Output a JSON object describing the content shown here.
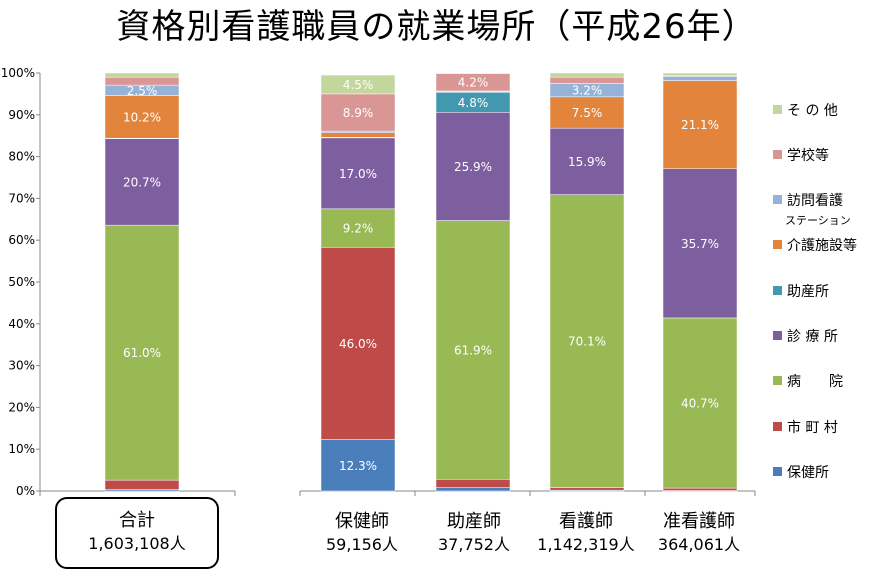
{
  "title": "資格別看護職員の就業場所（平成26年）",
  "chart_data": {
    "type": "bar",
    "stacked": true,
    "percent": true,
    "ylim": [
      0,
      100
    ],
    "yticks": [
      "0%",
      "10%",
      "20%",
      "30%",
      "40%",
      "50%",
      "60%",
      "70%",
      "80%",
      "90%",
      "100%"
    ],
    "grid": false,
    "legend_position": "right",
    "categories": [
      {
        "name": "合計",
        "total": "1,603,108人"
      },
      {
        "name": "保健師",
        "total": "59,156人"
      },
      {
        "name": "助産師",
        "total": "37,752人"
      },
      {
        "name": "看護師",
        "total": "1,142,319人"
      },
      {
        "name": "准看護師",
        "total": "364,061人"
      }
    ],
    "series": [
      {
        "name": "保健所",
        "color": "#4A7EBB",
        "values": [
          0.4,
          12.3,
          0.8,
          0.2,
          0.1
        ],
        "labels": [
          "",
          "12.3%",
          "",
          "",
          ""
        ]
      },
      {
        "name": "市 町 村",
        "color": "#BE4B48",
        "values": [
          2.2,
          46.0,
          2.0,
          0.6,
          0.6
        ],
        "labels": [
          "",
          "46.0%",
          "",
          "",
          ""
        ]
      },
      {
        "name": "病　　院",
        "color": "#98B954",
        "values": [
          61.0,
          9.2,
          61.9,
          70.1,
          40.7
        ],
        "labels": [
          "61.0%",
          "9.2%",
          "61.9%",
          "70.1%",
          "40.7%"
        ]
      },
      {
        "name": "診 療 所",
        "color": "#7D5FA0",
        "values": [
          20.7,
          17.0,
          25.9,
          15.9,
          35.7
        ],
        "labels": [
          "20.7%",
          "17.0%",
          "25.9%",
          "15.9%",
          "35.7%"
        ]
      },
      {
        "name": "助産所",
        "color": "#4198AF",
        "values": [
          0.1,
          0.1,
          4.8,
          0.0,
          0.0
        ],
        "labels": [
          "",
          "",
          "4.8%",
          "",
          ""
        ]
      },
      {
        "name": "介護施設等",
        "color": "#E2843C",
        "values": [
          10.2,
          1.1,
          0.1,
          7.5,
          21.1
        ],
        "labels": [
          "10.2%",
          "",
          "",
          "7.5%",
          "21.1%"
        ]
      },
      {
        "name": "訪問看護ステーション",
        "color": "#95B3D7",
        "values": [
          2.5,
          0.4,
          0.2,
          3.2,
          1.0
        ],
        "labels": [
          "2.5%",
          "",
          "",
          "3.2%",
          ""
        ]
      },
      {
        "name": "学校等",
        "color": "#D99694",
        "values": [
          1.9,
          8.9,
          4.2,
          1.5,
          0.2
        ],
        "labels": [
          "",
          "8.9%",
          "4.2%",
          "",
          ""
        ]
      },
      {
        "name": "そ の 他",
        "color": "#C3D69B",
        "values": [
          1.0,
          4.5,
          0.1,
          1.0,
          0.6
        ],
        "labels": [
          "",
          "4.5%",
          "",
          "",
          ""
        ]
      }
    ]
  }
}
